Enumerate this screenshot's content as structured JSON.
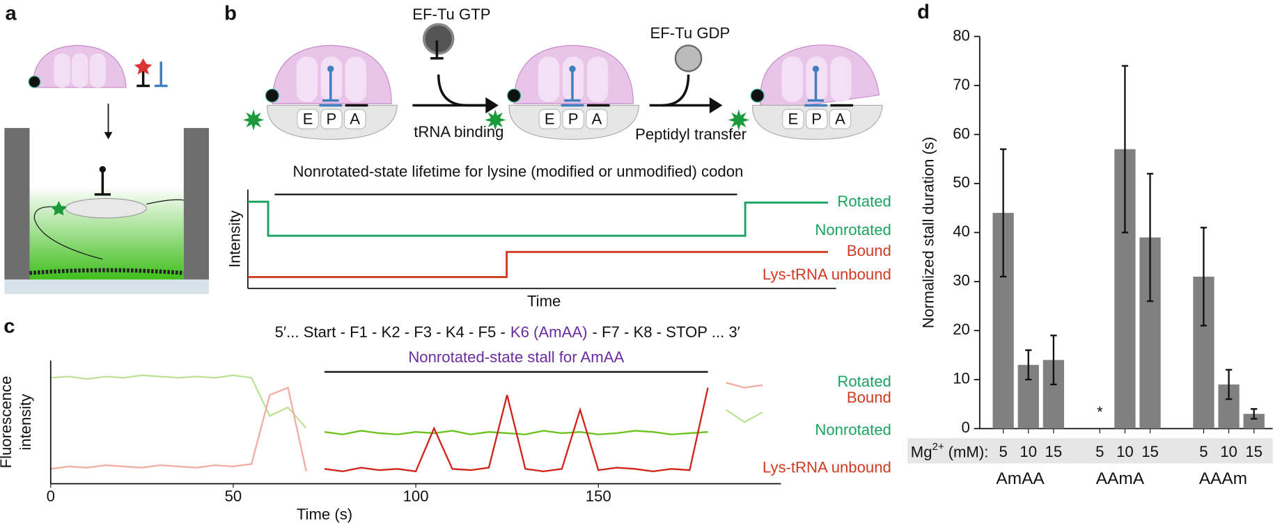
{
  "panel_a": {
    "label": "a"
  },
  "panel_b": {
    "label": "b",
    "ef_tu_gtp": "EF-Tu GTP",
    "ef_tu_gdp": "EF-Tu GDP",
    "step1": "tRNA binding",
    "step2": "Peptidyl transfer",
    "sites": [
      "E",
      "P",
      "A"
    ],
    "timeline_title": "Nonrotated-state lifetime for lysine (modified or unmodified) codon",
    "y_label": "Intensity",
    "x_label": "Time",
    "levels": {
      "rotated": "Rotated",
      "nonrotated": "Nonrotated",
      "bound": "Bound",
      "unbound": "Lys-tRNA unbound"
    }
  },
  "chart_data": [
    {
      "type": "line",
      "panel_label": "c",
      "sequence": [
        "5′... Start - F1 - K2 - F3 - K4 - F5 -",
        "K6 (AmAA)",
        "- F7 - K8 - STOP ... 3′"
      ],
      "annotation": {
        "text": "Nonrotated-state stall for AmAA",
        "x": [
          75,
          180
        ]
      },
      "y_label": [
        "Fluorescence",
        "intensity"
      ],
      "x_label": "Time (s)",
      "xlim": [
        0,
        200
      ],
      "xticks": [
        0,
        50,
        100,
        150
      ],
      "ylim": [
        0,
        1
      ],
      "x": [
        0,
        5,
        10,
        15,
        20,
        25,
        30,
        35,
        40,
        45,
        50,
        55,
        60,
        65,
        70,
        75,
        80,
        85,
        90,
        95,
        100,
        105,
        110,
        115,
        120,
        125,
        130,
        135,
        140,
        145,
        150,
        155,
        160,
        165,
        170,
        175,
        180,
        185,
        190,
        195
      ],
      "series": [
        {
          "color": "#bde296",
          "values": [
            0.86,
            0.87,
            0.85,
            0.87,
            0.86,
            0.88,
            0.87,
            0.86,
            0.87,
            0.86,
            0.88,
            0.86,
            0.55,
            0.62,
            0.45,
            null,
            null,
            null,
            null,
            null,
            null,
            null,
            null,
            null,
            null,
            null,
            null,
            null,
            null,
            null,
            null,
            null,
            null,
            null,
            null,
            null,
            null,
            0.6,
            0.5,
            0.58
          ]
        },
        {
          "color": "#f2aca2",
          "values": [
            0.12,
            0.14,
            0.13,
            0.15,
            0.14,
            0.13,
            0.15,
            0.14,
            0.13,
            0.15,
            0.14,
            0.16,
            0.72,
            0.78,
            0.1,
            null,
            null,
            null,
            null,
            null,
            null,
            null,
            null,
            null,
            null,
            null,
            null,
            null,
            null,
            null,
            null,
            null,
            null,
            null,
            null,
            null,
            null,
            0.82,
            0.78,
            0.8
          ]
        },
        {
          "color": "#6cc11c",
          "values": [
            null,
            null,
            null,
            null,
            null,
            null,
            null,
            null,
            null,
            null,
            null,
            null,
            null,
            null,
            null,
            0.42,
            0.4,
            0.43,
            0.41,
            0.4,
            0.42,
            0.41,
            0.43,
            0.4,
            0.42,
            0.41,
            0.4,
            0.43,
            0.41,
            0.42,
            0.4,
            0.41,
            0.43,
            0.42,
            0.4,
            0.41,
            0.42,
            null,
            null,
            null
          ]
        },
        {
          "color": "#d2231a",
          "values": [
            null,
            null,
            null,
            null,
            null,
            null,
            null,
            null,
            null,
            null,
            null,
            null,
            null,
            null,
            null,
            0.12,
            0.1,
            0.13,
            0.11,
            0.12,
            0.1,
            0.45,
            0.12,
            0.11,
            0.13,
            0.72,
            0.12,
            0.1,
            0.12,
            0.6,
            0.11,
            0.13,
            0.12,
            0.1,
            0.12,
            0.11,
            0.78,
            null,
            null,
            null
          ]
        }
      ],
      "level_labels": [
        {
          "text": "Rotated",
          "color": "#1aa260"
        },
        {
          "text": "Bound",
          "color": "#d03a22"
        },
        {
          "text": "Nonrotated",
          "color": "#1aa260"
        },
        {
          "text": "Lys-tRNA unbound",
          "color": "#d03a22"
        }
      ]
    },
    {
      "type": "bar",
      "panel_label": "d",
      "y_label": "Normalized stall duration (s)",
      "category_title": {
        "base": "Mg",
        "sup": "2+",
        "rest": "(mM):"
      },
      "categories": [
        "5",
        "10",
        "15",
        "5",
        "10",
        "15",
        "5",
        "10",
        "15"
      ],
      "groups": [
        "AmAA",
        "AAmA",
        "AAAm"
      ],
      "values": [
        44,
        13,
        14,
        null,
        57,
        39,
        31,
        9,
        3
      ],
      "errors": [
        13,
        3,
        5,
        null,
        17,
        13,
        10,
        3,
        1
      ],
      "missing_marker": "*",
      "color": "#808080",
      "ylim": [
        0,
        80
      ],
      "yticks": [
        0,
        10,
        20,
        30,
        40,
        50,
        60,
        70,
        80
      ]
    }
  ]
}
